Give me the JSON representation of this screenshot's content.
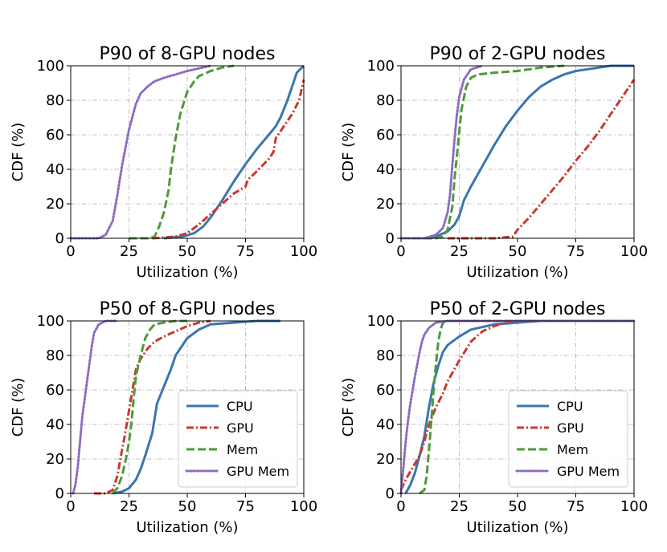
{
  "chart_data": [
    {
      "type": "line",
      "title": "P90 of 8-GPU nodes",
      "xlabel": "Utilization (%)",
      "ylabel": "CDF (%)",
      "xlim": [
        0,
        100
      ],
      "ylim": [
        0,
        100
      ],
      "xticks": [
        "0",
        "25",
        "50",
        "75",
        "100"
      ],
      "yticks": [
        "0",
        "20",
        "40",
        "60",
        "80",
        "100"
      ],
      "grid": true,
      "legend": null,
      "series": [
        {
          "name": "CPU",
          "x": [
            40,
            48,
            53,
            57,
            60,
            65,
            70,
            75,
            80,
            85,
            88,
            90,
            93,
            95,
            97,
            100
          ],
          "y": [
            0,
            1,
            3,
            7,
            12,
            22,
            33,
            43,
            52,
            60,
            65,
            70,
            80,
            88,
            96,
            100
          ]
        },
        {
          "name": "GPU",
          "x": [
            35,
            45,
            50,
            55,
            60,
            65,
            70,
            75,
            76,
            80,
            85,
            87,
            88,
            90,
            95,
            98,
            100
          ],
          "y": [
            0,
            1,
            3,
            8,
            14,
            20,
            26,
            30,
            34,
            39,
            46,
            50,
            58,
            62,
            72,
            80,
            92
          ]
        },
        {
          "name": "Mem",
          "x": [
            25,
            33,
            36,
            38,
            40,
            42,
            43,
            45,
            47,
            50,
            53,
            55,
            60,
            65,
            70
          ],
          "y": [
            0,
            0,
            1,
            7,
            15,
            28,
            40,
            58,
            72,
            85,
            91,
            94,
            97,
            99,
            100
          ]
        },
        {
          "name": "GPU Mem",
          "x": [
            0,
            8,
            12,
            15,
            18,
            20,
            22,
            25,
            28,
            30,
            33,
            36,
            40,
            45,
            50,
            60
          ],
          "y": [
            0,
            0,
            0,
            2,
            10,
            25,
            42,
            63,
            78,
            84,
            88,
            91,
            93,
            95,
            97,
            100
          ]
        }
      ]
    },
    {
      "type": "line",
      "title": "P90 of 2-GPU nodes",
      "xlabel": "Utilization (%)",
      "ylabel": "CDF (%)",
      "xlim": [
        0,
        100
      ],
      "ylim": [
        0,
        100
      ],
      "xticks": [
        "0",
        "25",
        "50",
        "75",
        "100"
      ],
      "yticks": [
        "0",
        "20",
        "40",
        "60",
        "80",
        "100"
      ],
      "grid": true,
      "legend": null,
      "series": [
        {
          "name": "CPU",
          "x": [
            10,
            15,
            20,
            23,
            25,
            27,
            30,
            35,
            40,
            45,
            50,
            55,
            60,
            65,
            70,
            75,
            80,
            85,
            90,
            100
          ],
          "y": [
            0,
            1,
            4,
            8,
            13,
            22,
            30,
            42,
            54,
            65,
            74,
            82,
            88,
            92,
            95,
            97,
            98,
            99,
            100,
            100
          ]
        },
        {
          "name": "GPU",
          "x": [
            20,
            40,
            48,
            49,
            50,
            55,
            60,
            65,
            70,
            75,
            80,
            85,
            90,
            95,
            100
          ],
          "y": [
            0,
            0,
            1,
            3,
            5,
            12,
            20,
            28,
            36,
            45,
            53,
            62,
            72,
            82,
            92
          ]
        },
        {
          "name": "Mem",
          "x": [
            5,
            15,
            18,
            20,
            22,
            23,
            24,
            25,
            26,
            28,
            30,
            33,
            40,
            50,
            60,
            70
          ],
          "y": [
            0,
            0,
            1,
            5,
            18,
            35,
            48,
            62,
            75,
            88,
            93,
            95,
            96,
            97,
            99,
            100
          ]
        },
        {
          "name": "GPU Mem",
          "x": [
            0,
            10,
            15,
            18,
            20,
            21,
            22,
            23,
            24,
            25,
            27,
            30,
            35
          ],
          "y": [
            0,
            0,
            2,
            6,
            15,
            25,
            42,
            58,
            72,
            82,
            92,
            98,
            100
          ]
        }
      ]
    },
    {
      "type": "line",
      "title": "P50 of 8-GPU nodes",
      "xlabel": "Utilization (%)",
      "ylabel": "CDF (%)",
      "xlim": [
        0,
        100
      ],
      "ylim": [
        0,
        100
      ],
      "xticks": [
        "0",
        "25",
        "50",
        "75",
        "100"
      ],
      "yticks": [
        "0",
        "20",
        "40",
        "60",
        "80",
        "100"
      ],
      "grid": true,
      "legend": {
        "position": "lower-right",
        "entries": [
          "CPU",
          "GPU",
          "Mem",
          "GPU Mem"
        ]
      },
      "series": [
        {
          "name": "CPU",
          "x": [
            18,
            22,
            25,
            28,
            30,
            32,
            35,
            37,
            40,
            43,
            45,
            48,
            50,
            55,
            60,
            70,
            80,
            90
          ],
          "y": [
            0,
            1,
            3,
            8,
            14,
            22,
            35,
            52,
            62,
            72,
            80,
            86,
            90,
            95,
            98,
            99,
            100,
            100
          ]
        },
        {
          "name": "GPU",
          "x": [
            10,
            15,
            18,
            20,
            22,
            23,
            24,
            25,
            26,
            27,
            28,
            30,
            33,
            36,
            40,
            45,
            50,
            55,
            60
          ],
          "y": [
            0,
            0,
            2,
            10,
            25,
            32,
            40,
            48,
            56,
            64,
            72,
            78,
            84,
            88,
            91,
            94,
            97,
            99,
            100
          ]
        },
        {
          "name": "Mem",
          "x": [
            18,
            20,
            22,
            24,
            25,
            26,
            27,
            28,
            30,
            32,
            34,
            36,
            40,
            45,
            50
          ],
          "y": [
            0,
            3,
            10,
            22,
            30,
            40,
            55,
            68,
            80,
            90,
            95,
            98,
            99,
            100,
            100
          ]
        },
        {
          "name": "GPU Mem",
          "x": [
            1,
            2,
            3,
            4,
            5,
            6,
            7,
            8,
            9,
            10,
            12,
            15,
            20
          ],
          "y": [
            0,
            5,
            15,
            30,
            45,
            55,
            65,
            75,
            85,
            93,
            98,
            100,
            100
          ]
        }
      ]
    },
    {
      "type": "line",
      "title": "P50 of 2-GPU nodes",
      "xlabel": "Utilization (%)",
      "ylabel": "CDF (%)",
      "xlim": [
        0,
        100
      ],
      "ylim": [
        0,
        100
      ],
      "xticks": [
        "0",
        "25",
        "50",
        "75",
        "100"
      ],
      "yticks": [
        "0",
        "20",
        "40",
        "60",
        "80",
        "100"
      ],
      "grid": true,
      "legend": {
        "position": "lower-right",
        "entries": [
          "CPU",
          "GPU",
          "Mem",
          "GPU Mem"
        ]
      },
      "series": [
        {
          "name": "CPU",
          "x": [
            2,
            4,
            6,
            8,
            10,
            12,
            14,
            16,
            18,
            20,
            25,
            30,
            40,
            50,
            60,
            100
          ],
          "y": [
            0,
            5,
            12,
            22,
            33,
            50,
            64,
            74,
            82,
            86,
            91,
            95,
            98,
            99,
            100,
            100
          ]
        },
        {
          "name": "GPU",
          "x": [
            0,
            2,
            5,
            8,
            10,
            12,
            15,
            18,
            20,
            25,
            30,
            35,
            40,
            45,
            50,
            100
          ],
          "y": [
            2,
            8,
            15,
            22,
            30,
            40,
            50,
            58,
            65,
            77,
            88,
            94,
            97,
            99,
            100,
            100
          ]
        },
        {
          "name": "Mem",
          "x": [
            8,
            10,
            11,
            12,
            13,
            14,
            15,
            16,
            17,
            18,
            20,
            100
          ],
          "y": [
            0,
            2,
            10,
            25,
            42,
            60,
            75,
            88,
            95,
            99,
            100,
            100
          ]
        },
        {
          "name": "GPU Mem",
          "x": [
            0,
            1,
            2,
            3,
            4,
            5,
            6,
            7,
            8,
            9,
            10,
            12,
            15,
            20,
            25,
            30,
            100
          ],
          "y": [
            0,
            15,
            30,
            42,
            52,
            60,
            68,
            75,
            82,
            88,
            92,
            96,
            99,
            100,
            100,
            100,
            100
          ]
        }
      ]
    }
  ],
  "styles": {
    "CPU": {
      "color": "#3a76af",
      "dash": "solid"
    },
    "GPU": {
      "color": "#c83a2e",
      "dash": "dashdot"
    },
    "Mem": {
      "color": "#4e9a3a",
      "dash": "dashed"
    },
    "GPU Mem": {
      "color": "#8c6bc2",
      "dash": "dotted"
    }
  }
}
